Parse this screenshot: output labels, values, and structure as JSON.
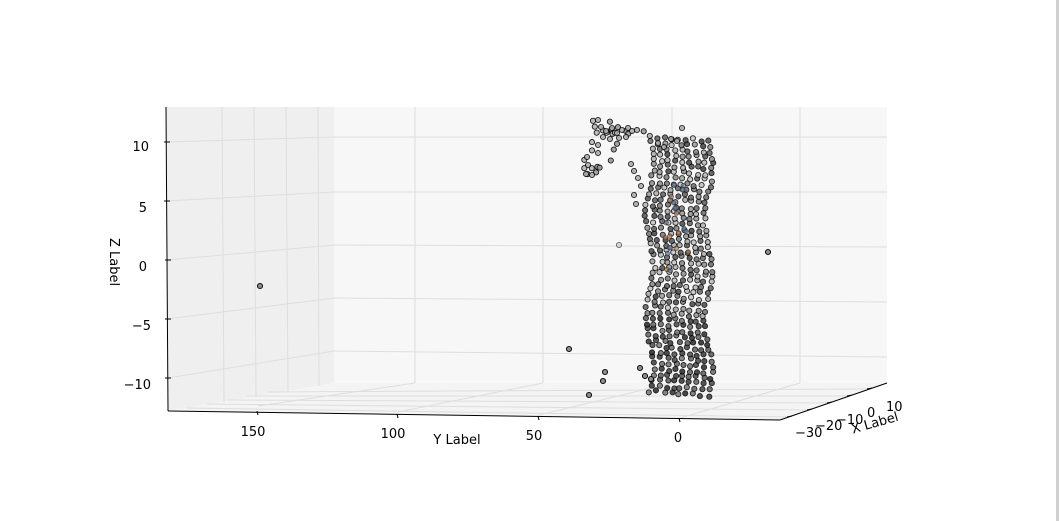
{
  "chart_data": {
    "type": "scatter",
    "projection": "3d",
    "xlabel": "X Label",
    "ylabel": "Y Label",
    "zlabel": "Z Label",
    "x_ticks": [
      "−30",
      "−20",
      "−10",
      "0",
      "10"
    ],
    "y_ticks": [
      "150",
      "100",
      "50",
      "0"
    ],
    "z_ticks": [
      "10",
      "5",
      "0",
      "−5",
      "−10"
    ],
    "xlim": [
      -35,
      15
    ],
    "ylim": [
      -5,
      185
    ],
    "zlim": [
      -12.5,
      12.5
    ],
    "grid": true,
    "marker": "o",
    "marker_edge_color": "#000000",
    "marker_face_color": "#9a9a9a",
    "colors": {
      "pane": "#f2f2f2",
      "grid": "#e0e0e0",
      "axis": "#000000",
      "highlight_blue": "#5a7da8",
      "highlight_orange": "#c8753a"
    },
    "outliers": [
      {
        "x": 0,
        "y": 160,
        "z": -1.5
      },
      {
        "x": 0,
        "y": -34,
        "z": 0.5
      },
      {
        "x": 0,
        "y": 40,
        "z": 1.8
      },
      {
        "x": 0,
        "y": 42,
        "z": -7.5
      },
      {
        "x": 0,
        "y": 28,
        "z": -9.0
      },
      {
        "x": 0,
        "y": 29,
        "z": -10.0
      },
      {
        "x": 0,
        "y": 30,
        "z": -11.2
      }
    ],
    "column_cluster": {
      "description_values": {
        "x_center": 0,
        "y_center": 0,
        "y_spread": 6,
        "z_min": -11,
        "z_max": 10.5
      }
    },
    "top_arm_cluster": [
      {
        "y": 30,
        "z": 12.0
      },
      {
        "y": 29,
        "z": 11.5
      },
      {
        "y": 28,
        "z": 11.0
      },
      {
        "y": 25,
        "z": 11.2
      },
      {
        "y": 22,
        "z": 11.0
      },
      {
        "y": 20,
        "z": 10.9
      },
      {
        "y": 18,
        "z": 11.0
      },
      {
        "y": 30,
        "z": 10.2
      },
      {
        "y": 31,
        "z": 9.5
      },
      {
        "y": 33,
        "z": 8.7
      },
      {
        "y": 33,
        "z": 8.0
      },
      {
        "y": 31,
        "z": 8.0
      },
      {
        "y": 32,
        "z": 7.5
      }
    ]
  }
}
